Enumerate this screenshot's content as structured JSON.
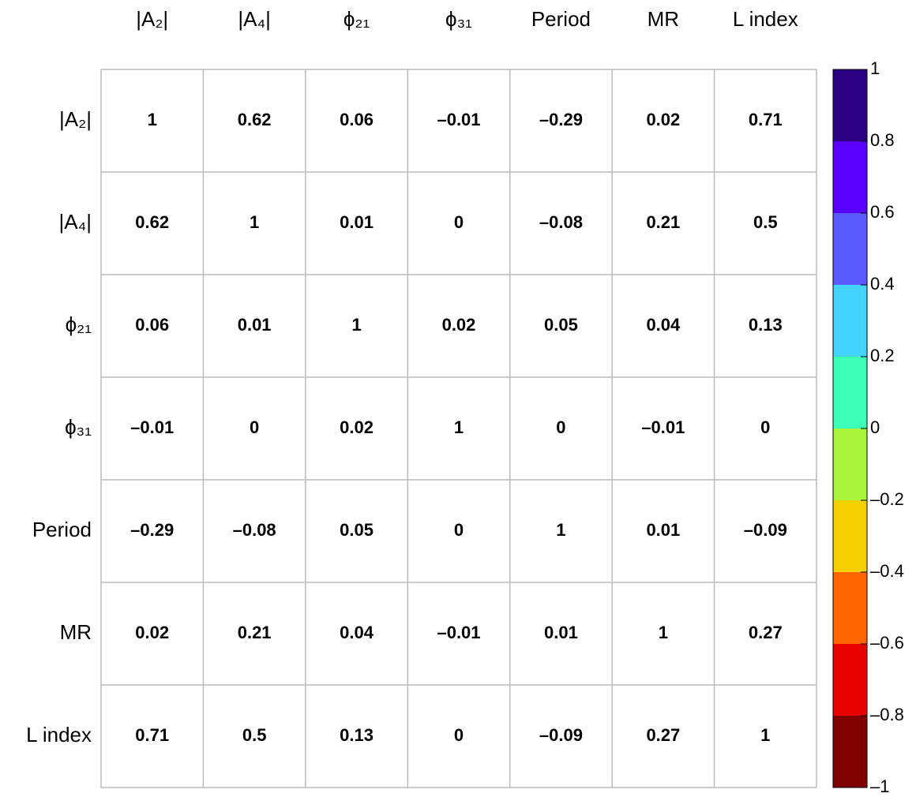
{
  "chart_data": {
    "type": "corrplot",
    "labels": [
      "|A₂|",
      "|A₄|",
      "ϕ₂₁",
      "ϕ₃₁",
      "Period",
      "MR",
      "L index"
    ],
    "values": [
      [
        1,
        0.62,
        0.06,
        -0.01,
        -0.29,
        0.02,
        0.71
      ],
      [
        0.62,
        1,
        0.01,
        0,
        -0.08,
        0.21,
        0.5
      ],
      [
        0.06,
        0.01,
        1,
        0.02,
        0.05,
        0.04,
        0.13
      ],
      [
        -0.01,
        0,
        0.02,
        1,
        0,
        -0.01,
        0
      ],
      [
        -0.29,
        -0.08,
        0.05,
        0,
        1,
        0.01,
        -0.09
      ],
      [
        0.02,
        0.21,
        0.04,
        -0.01,
        0.01,
        1,
        0.27
      ],
      [
        0.71,
        0.5,
        0.13,
        0,
        -0.09,
        0.27,
        1
      ]
    ],
    "value_labels": [
      [
        "1",
        "0.62",
        "0.06",
        "–0.01",
        "–0.29",
        "0.02",
        "0.71"
      ],
      [
        "0.62",
        "1",
        "0.01",
        "0",
        "–0.08",
        "0.21",
        "0.5"
      ],
      [
        "0.06",
        "0.01",
        "1",
        "0.02",
        "0.05",
        "0.04",
        "0.13"
      ],
      [
        "–0.01",
        "0",
        "0.02",
        "1",
        "0",
        "–0.01",
        "0"
      ],
      [
        "–0.29",
        "–0.08",
        "0.05",
        "0",
        "1",
        "0.01",
        "–0.09"
      ],
      [
        "0.02",
        "0.21",
        "0.04",
        "–0.01",
        "0.01",
        "1",
        "0.27"
      ],
      [
        "0.71",
        "0.5",
        "0.13",
        "0",
        "–0.09",
        "0.27",
        "1"
      ]
    ],
    "colorbar_lim": [
      -1,
      1
    ],
    "colorbar_ticks": [
      {
        "value": -1,
        "label": "–1"
      },
      {
        "value": -0.8,
        "label": "–0.8"
      },
      {
        "value": -0.6,
        "label": "–0.6"
      },
      {
        "value": -0.4,
        "label": "–0.4"
      },
      {
        "value": -0.2,
        "label": "–0.2"
      },
      0,
      0.2,
      0.4,
      0.6,
      0.8,
      1
    ],
    "colors": [
      "#7f0000",
      "#e60000",
      "#ff6600",
      "#f5d000",
      "#a8f53c",
      "#3dffb8",
      "#45d4ff",
      "#5a5aff",
      "#5a00ff",
      "#2a0080"
    ]
  }
}
